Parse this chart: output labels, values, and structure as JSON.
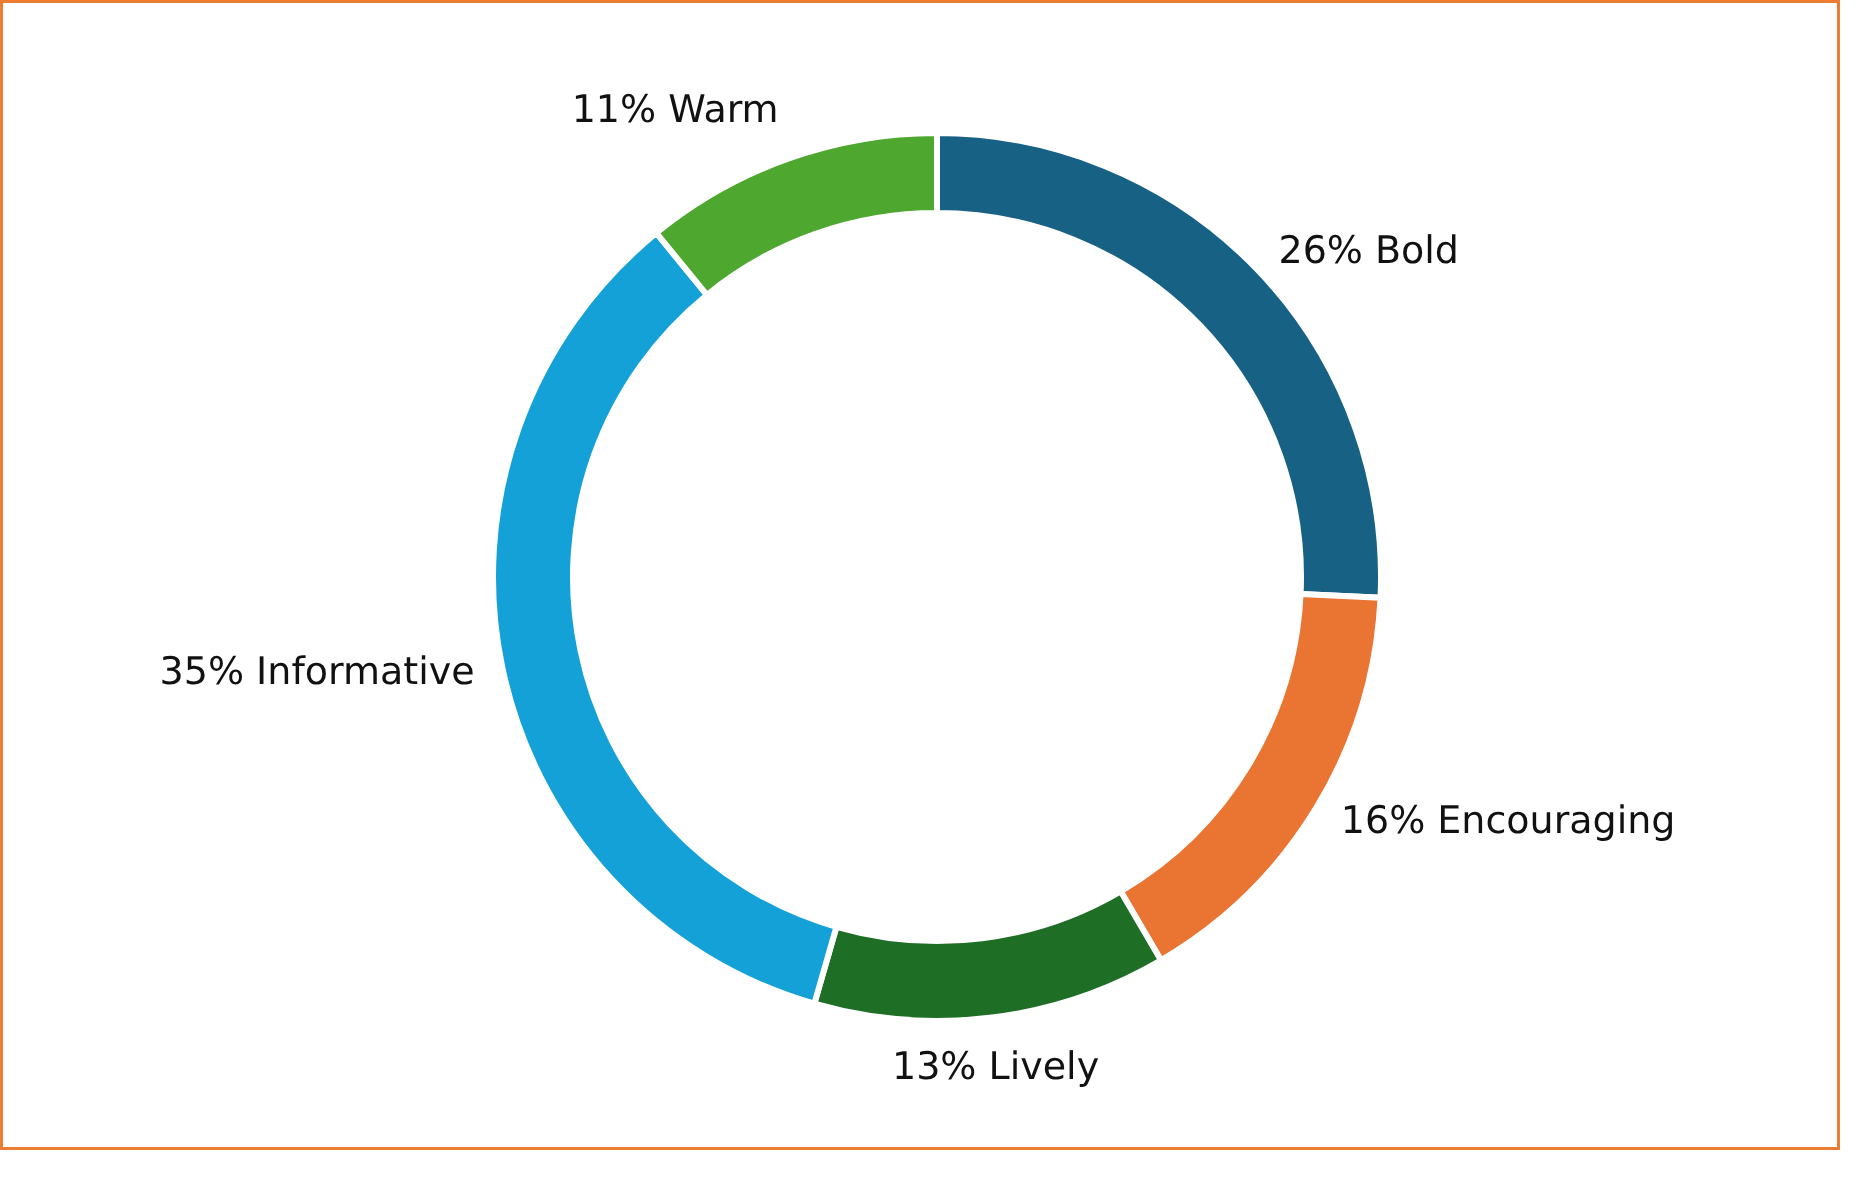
{
  "chart_data": {
    "type": "donut",
    "categories": [
      "Bold",
      "Encouraging",
      "Lively",
      "Informative",
      "Warm"
    ],
    "values": [
      26,
      16,
      13,
      35,
      11
    ],
    "value_labels": [
      "26%",
      "16%",
      "13%",
      "35%",
      "11%"
    ],
    "colors": [
      "#176185",
      "#ea7533",
      "#1e6e26",
      "#14a1d8",
      "#4ea72e"
    ]
  }
}
